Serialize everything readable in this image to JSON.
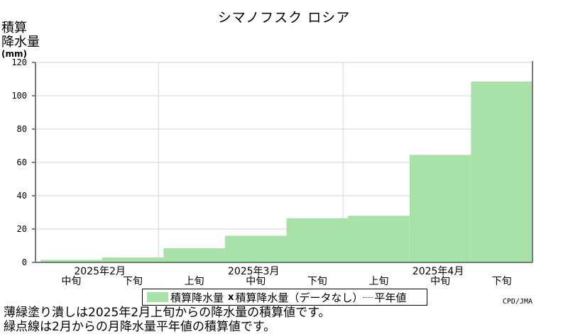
{
  "chart_data": {
    "type": "bar",
    "title": "シマノフスク ロシア",
    "ylabel_lines": [
      "積算",
      "降水量",
      "(mm)"
    ],
    "ylim": [
      0,
      120
    ],
    "yticks": [
      0,
      20,
      40,
      60,
      80,
      100,
      120
    ],
    "grid": true,
    "categories": [
      "2025年2月中旬",
      "2025年2月下旬",
      "2025年3月上旬",
      "2025年3月中旬",
      "2025年3月下旬",
      "2025年4月上旬",
      "2025年4月中旬",
      "2025年4月下旬"
    ],
    "x_labels": {
      "dekads": [
        "中旬",
        "下旬",
        "上旬",
        "中旬",
        "下旬",
        "上旬",
        "中旬",
        "下旬"
      ],
      "months": [
        {
          "label": "2025年2月",
          "span": 2
        },
        {
          "label": "2025年3月",
          "span": 3
        },
        {
          "label": "2025年4月",
          "span": 3
        }
      ]
    },
    "series": [
      {
        "name": "積算降水量",
        "color": "#a8e2a8",
        "values": [
          1.5,
          3,
          8.5,
          16,
          26.5,
          28,
          64.5,
          108.5
        ]
      }
    ],
    "legend": {
      "placement": "bottom",
      "items": [
        "積算降水量",
        "積算降水量（データなし）",
        "平年値"
      ]
    }
  },
  "credit": "CPD/JMA",
  "notes": [
    "薄緑塗り潰しは2025年2月上旬からの降水量の積算値です。",
    "緑点線は2月からの月降水量平年値の積算値です。"
  ]
}
